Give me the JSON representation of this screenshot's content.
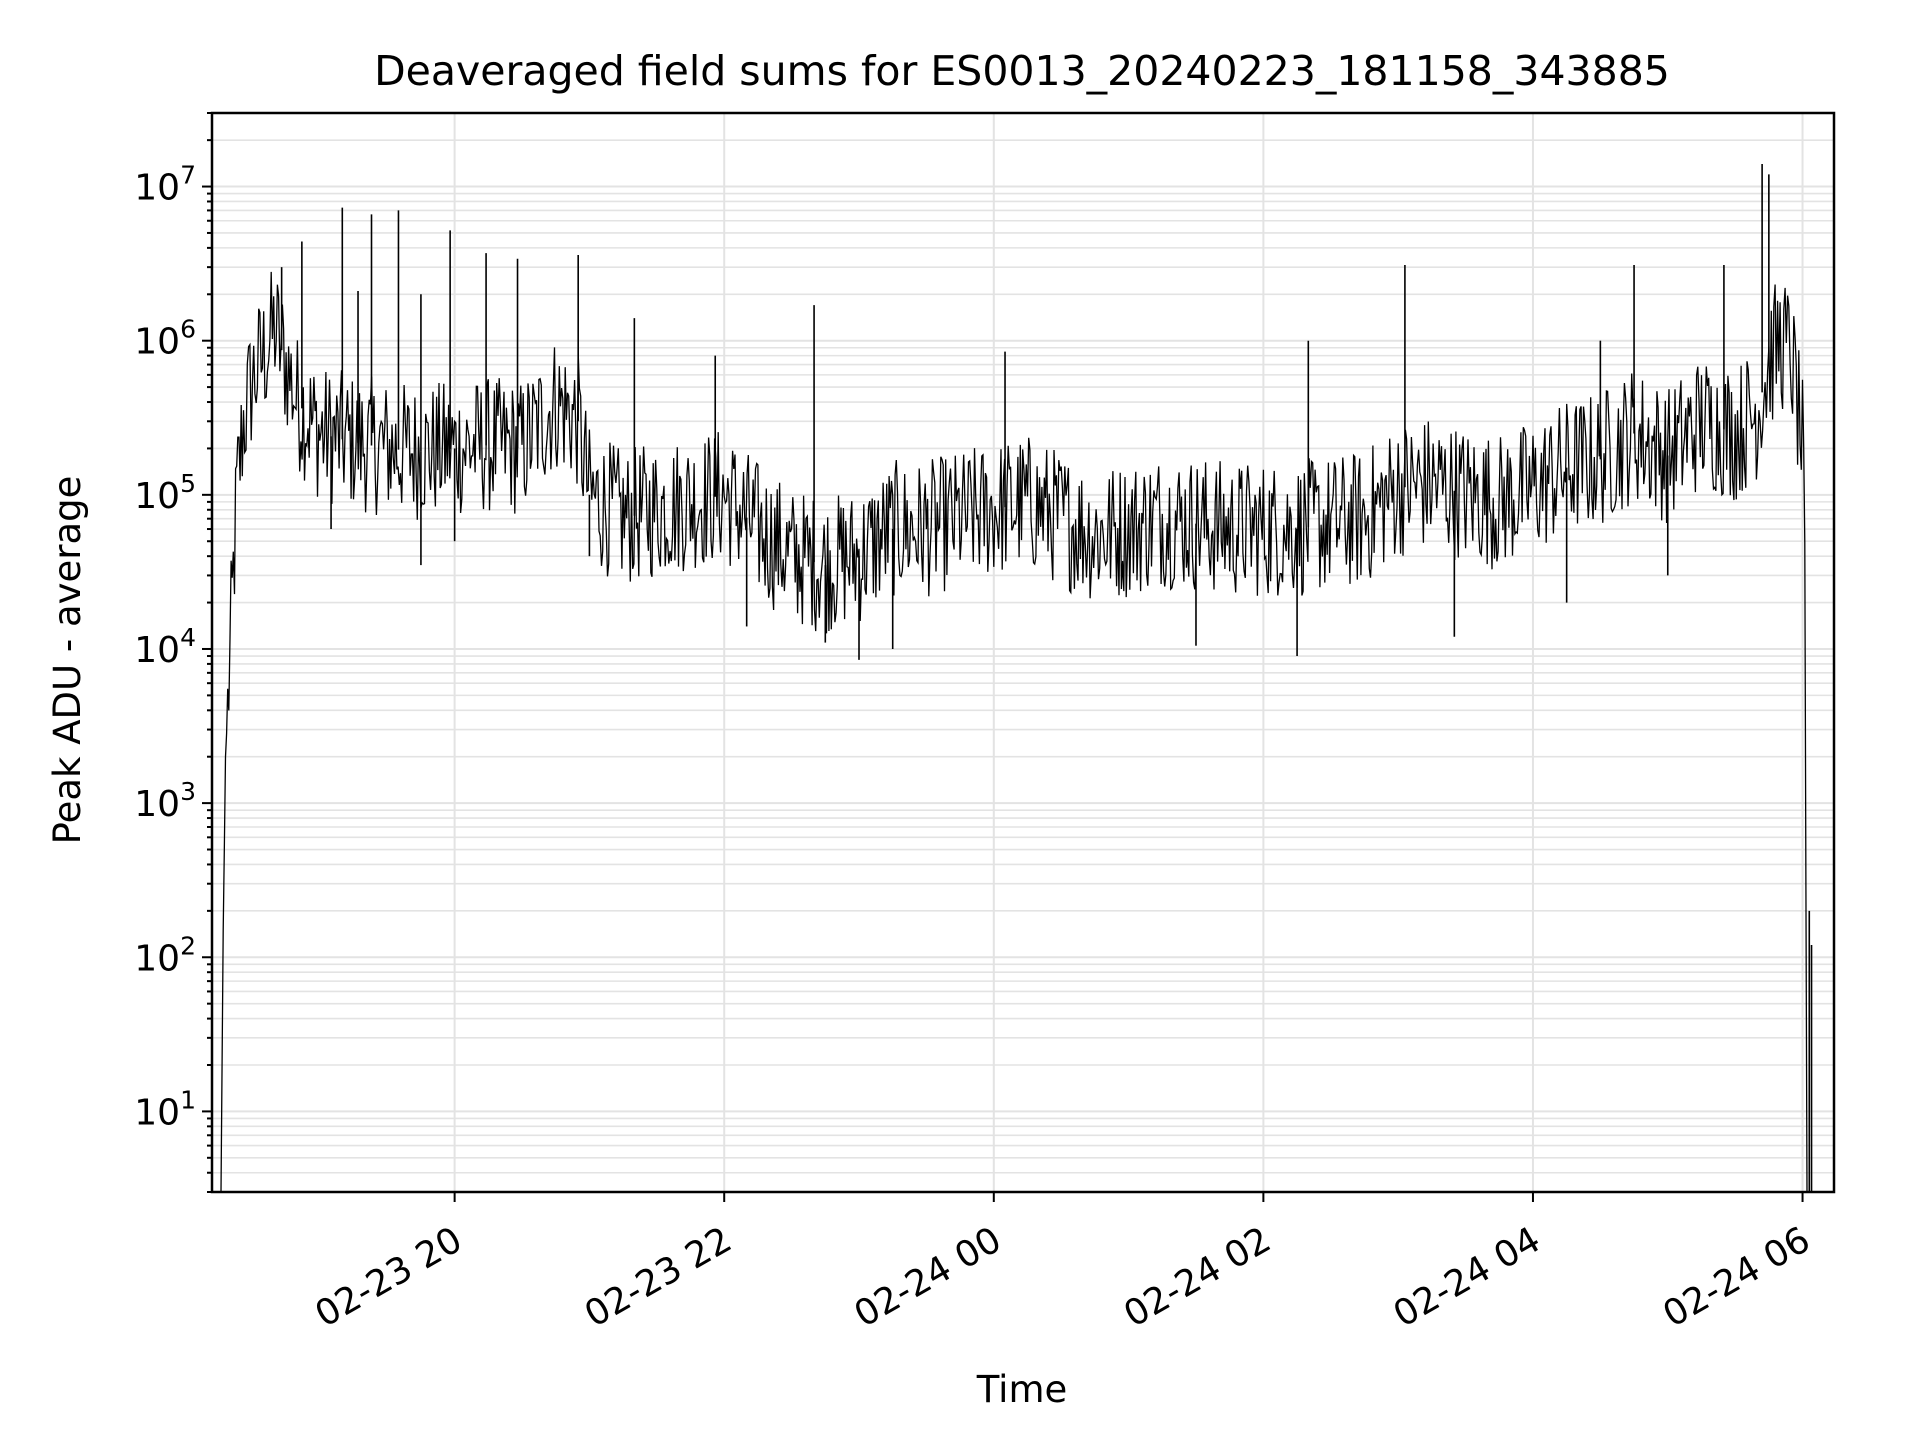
{
  "chart_data": {
    "type": "line",
    "title": "Deaveraged field sums for ES0013_20240223_181158_343885",
    "xlabel": "Time",
    "ylabel": "Peak ADU - average",
    "yscale": "log",
    "ylim": [
      3,
      30000000
    ],
    "xlim": [
      "2024-02-23 18:12",
      "2024-02-24 06:14"
    ],
    "grid": true,
    "line_color": "#000000",
    "grid_color": "#e3e3e3",
    "x_ticks": [
      {
        "value": "2024-02-23 20:00",
        "label": "02-23 20"
      },
      {
        "value": "2024-02-23 22:00",
        "label": "02-23 22"
      },
      {
        "value": "2024-02-24 00:00",
        "label": "02-24 00"
      },
      {
        "value": "2024-02-24 02:00",
        "label": "02-24 02"
      },
      {
        "value": "2024-02-24 04:00",
        "label": "02-24 04"
      },
      {
        "value": "2024-02-24 06:00",
        "label": "02-24 06"
      }
    ],
    "y_ticks": [
      {
        "value": 10,
        "base": "10",
        "exp": "1"
      },
      {
        "value": 100,
        "base": "10",
        "exp": "2"
      },
      {
        "value": 1000,
        "base": "10",
        "exp": "3"
      },
      {
        "value": 10000,
        "base": "10",
        "exp": "4"
      },
      {
        "value": 100000,
        "base": "10",
        "exp": "5"
      },
      {
        "value": 1000000,
        "base": "10",
        "exp": "6"
      },
      {
        "value": 10000000,
        "base": "10",
        "exp": "7"
      }
    ],
    "series": [
      {
        "points": [
          [
            "2024-02-23 18:16",
            3
          ],
          [
            "2024-02-23 18:17",
            150
          ],
          [
            "2024-02-23 18:18",
            2000
          ],
          [
            "2024-02-23 18:19",
            4000
          ],
          [
            "2024-02-23 18:21",
            20000
          ],
          [
            "2024-02-23 18:23",
            100000
          ],
          [
            "2024-02-23 18:26",
            300000
          ],
          [
            "2024-02-23 18:30",
            550000
          ],
          [
            "2024-02-23 18:35",
            800000
          ],
          [
            "2024-02-23 18:40",
            1200000
          ],
          [
            "2024-02-23 18:45",
            700000
          ],
          [
            "2024-02-23 18:50",
            400000
          ],
          [
            "2024-02-23 19:00",
            250000
          ],
          [
            "2024-02-23 19:15",
            220000
          ],
          [
            "2024-02-23 19:30",
            200000
          ],
          [
            "2024-02-23 19:45",
            190000
          ],
          [
            "2024-02-23 20:00",
            200000
          ],
          [
            "2024-02-23 20:15",
            210000
          ],
          [
            "2024-02-23 20:30",
            200000
          ],
          [
            "2024-02-23 20:45",
            400000
          ],
          [
            "2024-02-23 20:55",
            300000
          ],
          [
            "2024-02-23 21:00",
            100000
          ],
          [
            "2024-02-23 21:15",
            70000
          ],
          [
            "2024-02-23 21:30",
            80000
          ],
          [
            "2024-02-23 21:45",
            90000
          ],
          [
            "2024-02-23 22:00",
            100000
          ],
          [
            "2024-02-23 22:15",
            60000
          ],
          [
            "2024-02-23 22:30",
            40000
          ],
          [
            "2024-02-23 22:45",
            35000
          ],
          [
            "2024-02-23 23:00",
            40000
          ],
          [
            "2024-02-23 23:15",
            60000
          ],
          [
            "2024-02-23 23:30",
            60000
          ],
          [
            "2024-02-23 23:45",
            70000
          ],
          [
            "2024-02-24 00:00",
            80000
          ],
          [
            "2024-02-24 00:15",
            90000
          ],
          [
            "2024-02-24 00:30",
            70000
          ],
          [
            "2024-02-24 00:45",
            55000
          ],
          [
            "2024-02-24 01:00",
            60000
          ],
          [
            "2024-02-24 01:15",
            70000
          ],
          [
            "2024-02-24 01:30",
            65000
          ],
          [
            "2024-02-24 01:45",
            60000
          ],
          [
            "2024-02-24 02:00",
            60000
          ],
          [
            "2024-02-24 02:15",
            60000
          ],
          [
            "2024-02-24 02:30",
            65000
          ],
          [
            "2024-02-24 02:45",
            70000
          ],
          [
            "2024-02-24 03:00",
            110000
          ],
          [
            "2024-02-24 03:15",
            120000
          ],
          [
            "2024-02-24 03:30",
            100000
          ],
          [
            "2024-02-24 03:45",
            90000
          ],
          [
            "2024-02-24 04:00",
            110000
          ],
          [
            "2024-02-24 04:15",
            150000
          ],
          [
            "2024-02-24 04:30",
            170000
          ],
          [
            "2024-02-24 04:45",
            250000
          ],
          [
            "2024-02-24 05:00",
            180000
          ],
          [
            "2024-02-24 05:15",
            300000
          ],
          [
            "2024-02-24 05:30",
            250000
          ],
          [
            "2024-02-24 05:40",
            350000
          ],
          [
            "2024-02-24 05:45",
            700000
          ],
          [
            "2024-02-24 05:50",
            1000000
          ],
          [
            "2024-02-24 05:55",
            800000
          ],
          [
            "2024-02-24 06:00",
            200000
          ],
          [
            "2024-02-24 06:01",
            30000
          ],
          [
            "2024-02-24 06:02",
            3
          ]
        ],
        "spikes": [
          [
            "2024-02-23 18:43",
            3000000
          ],
          [
            "2024-02-23 18:52",
            4400000
          ],
          [
            "2024-02-23 19:10",
            7300000
          ],
          [
            "2024-02-23 19:17",
            2100000
          ],
          [
            "2024-02-23 19:23",
            6600000
          ],
          [
            "2024-02-23 19:35",
            7000000
          ],
          [
            "2024-02-23 19:45",
            2000000
          ],
          [
            "2024-02-23 19:58",
            5200000
          ],
          [
            "2024-02-23 20:14",
            3700000
          ],
          [
            "2024-02-23 20:28",
            3400000
          ],
          [
            "2024-02-23 20:55",
            3600000
          ],
          [
            "2024-02-23 21:20",
            1400000
          ],
          [
            "2024-02-23 21:56",
            800000
          ],
          [
            "2024-02-23 22:40",
            1700000
          ],
          [
            "2024-02-24 00:05",
            850000
          ],
          [
            "2024-02-24 02:20",
            1000000
          ],
          [
            "2024-02-24 03:03",
            3100000
          ],
          [
            "2024-02-24 04:30",
            1000000
          ],
          [
            "2024-02-24 04:45",
            3100000
          ],
          [
            "2024-02-24 05:25",
            3100000
          ],
          [
            "2024-02-24 05:42",
            14000000
          ],
          [
            "2024-02-24 05:45",
            12000000
          ],
          [
            "2024-02-24 06:03",
            200
          ],
          [
            "2024-02-24 06:04",
            120
          ]
        ],
        "dips": [
          [
            "2024-02-23 19:05",
            60000
          ],
          [
            "2024-02-23 19:45",
            35000
          ],
          [
            "2024-02-23 20:00",
            50000
          ],
          [
            "2024-02-23 21:00",
            40000
          ],
          [
            "2024-02-23 22:10",
            14000
          ],
          [
            "2024-02-23 22:45",
            11000
          ],
          [
            "2024-02-23 23:00",
            8500
          ],
          [
            "2024-02-23 23:15",
            10000
          ],
          [
            "2024-02-24 01:30",
            10500
          ],
          [
            "2024-02-24 02:15",
            9000
          ],
          [
            "2024-02-24 03:25",
            12000
          ],
          [
            "2024-02-24 04:15",
            20000
          ],
          [
            "2024-02-24 05:00",
            30000
          ]
        ]
      }
    ]
  }
}
